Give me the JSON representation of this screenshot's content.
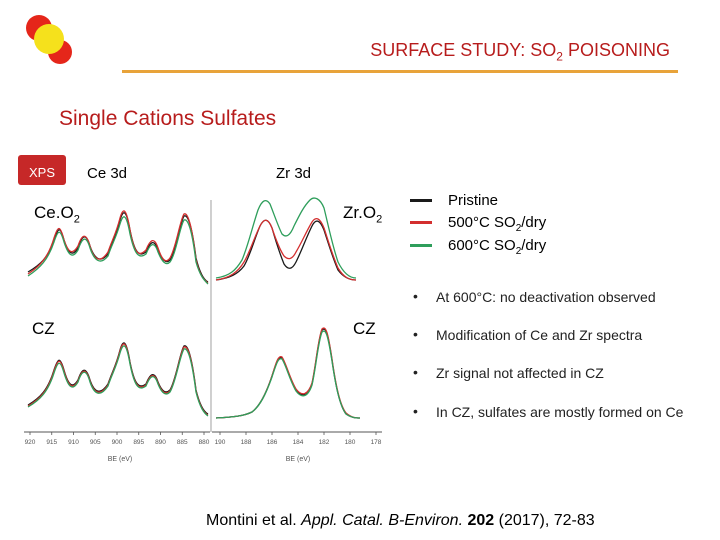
{
  "slide": {
    "title_main": "SURFACE STUDY: SO",
    "title_sub": "2",
    "title_tail": " POISONING",
    "subtitle": "Single Cations Sulfates",
    "xps_label": "XPS",
    "header_ce": "Ce 3d",
    "header_zr": "Zr 3d"
  },
  "plot_labels": {
    "ceo2_main": "Ce.O",
    "ceo2_sub": "2",
    "zro2_main": "Zr.O",
    "zro2_sub": "2",
    "cz_left": "CZ",
    "cz_right": "CZ",
    "ce_ticks": [
      "920",
      "915",
      "910",
      "905",
      "900",
      "895",
      "890",
      "885",
      "880"
    ],
    "zr_ticks": [
      "190",
      "188",
      "186",
      "184",
      "182",
      "180",
      "178"
    ],
    "ce_xlabel": "BE (eV)",
    "zr_xlabel": "BE (eV)"
  },
  "legend": [
    {
      "text": "Pristine",
      "sub": "",
      "tail": "",
      "color": "#1a1a1a"
    },
    {
      "text": "500°C SO",
      "sub": "2",
      "tail": "/dry",
      "color": "#d32f2f"
    },
    {
      "text": "600°C SO",
      "sub": "2",
      "tail": "/dry",
      "color": "#2e9e5b"
    }
  ],
  "bullets": [
    {
      "dot": "•",
      "text": "At 600°C: no deactivation observed"
    },
    {
      "dot": "•",
      "text": "Modification of Ce and Zr spectra"
    },
    {
      "dot": "•",
      "text": "Zr signal not affected in CZ"
    },
    {
      "dot": "•",
      "text": "In CZ, sulfates are mostly formed on Ce"
    }
  ],
  "citation": {
    "authors": "Montini et al. ",
    "journal": "Appl. Catal. B-Environ.",
    "volume": "202",
    "rest": " (2017), 72-83"
  },
  "colors": {
    "title": "#b71c1c",
    "accent_line": "#e8a33a",
    "xps_box": "#c62828",
    "pristine": "#1a1a1a",
    "so2_500": "#d32f2f",
    "so2_600": "#2e9e5b"
  }
}
